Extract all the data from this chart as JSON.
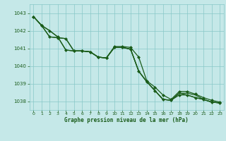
{
  "title": "Graphe pression niveau de la mer (hPa)",
  "background_color": "#c5e8e8",
  "grid_color": "#88c8c8",
  "line_color": "#1a5c1a",
  "xlim": [
    -0.5,
    23.5
  ],
  "ylim": [
    1037.5,
    1043.5
  ],
  "yticks": [
    1038,
    1039,
    1040,
    1041,
    1042,
    1043
  ],
  "xticks": [
    0,
    1,
    2,
    3,
    4,
    5,
    6,
    7,
    8,
    9,
    10,
    11,
    12,
    13,
    14,
    15,
    16,
    17,
    18,
    19,
    20,
    21,
    22,
    23
  ],
  "series": [
    {
      "data": [
        1042.8,
        1042.3,
        1042.0,
        1041.65,
        1040.9,
        1040.85,
        1040.85,
        1040.8,
        1040.5,
        1040.45,
        1041.1,
        1041.1,
        1041.05,
        1040.5,
        1039.15,
        1038.8,
        1038.35,
        1038.1,
        1038.55,
        1038.55,
        1038.4,
        1038.2,
        1038.05,
        1037.95
      ],
      "marker": true,
      "lw": 0.9
    },
    {
      "data": [
        1042.8,
        1042.3,
        1042.0,
        1041.65,
        1040.9,
        1040.85,
        1040.85,
        1040.8,
        1040.5,
        1040.45,
        1041.05,
        1041.05,
        1040.95,
        1039.7,
        1039.1,
        1038.6,
        1038.1,
        1038.05,
        1038.45,
        1038.45,
        1038.35,
        1038.1,
        1037.95,
        1037.9
      ],
      "marker": false,
      "lw": 0.9
    },
    {
      "data": [
        1042.8,
        1042.3,
        1041.65,
        1041.6,
        1041.55,
        1040.85,
        1040.85,
        1040.8,
        1040.5,
        1040.45,
        1041.05,
        1041.05,
        1040.95,
        1039.7,
        1039.1,
        1038.6,
        1038.1,
        1038.05,
        1038.45,
        1038.35,
        1038.2,
        1038.1,
        1037.95,
        1037.9
      ],
      "marker": false,
      "lw": 0.9
    },
    {
      "data": [
        1042.8,
        1042.3,
        1041.65,
        1041.6,
        1041.55,
        1040.85,
        1040.85,
        1040.8,
        1040.5,
        1040.45,
        1041.05,
        1041.05,
        1040.95,
        1039.7,
        1039.1,
        1038.6,
        1038.1,
        1038.05,
        1038.35,
        1038.35,
        1038.2,
        1038.1,
        1037.95,
        1037.9
      ],
      "marker": true,
      "lw": 0.9
    }
  ]
}
